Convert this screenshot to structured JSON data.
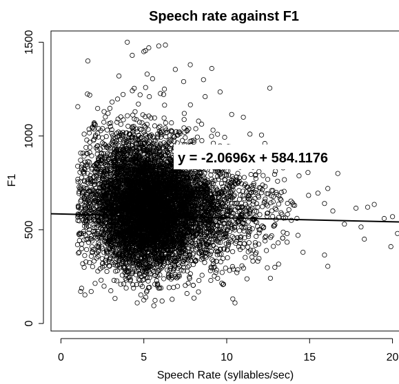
{
  "chart_data": {
    "type": "scatter",
    "title": "Speech rate against F1",
    "xlabel": "Speech Rate (syllables/sec)",
    "ylabel": "F1",
    "xlim": [
      -0.6,
      20.6
    ],
    "ylim": [
      -40,
      1560
    ],
    "xticks": [
      0,
      5,
      10,
      15,
      20
    ],
    "yticks": [
      0,
      500,
      1000,
      1500
    ],
    "grid": false,
    "legend": "none",
    "marker": "open-circle",
    "regression": {
      "slope": -2.0696,
      "intercept": 584.1176,
      "label": "y = -2.0696x + 584.1176"
    },
    "outliers": [
      [
        4.0,
        1500
      ],
      [
        4.3,
        1430
      ],
      [
        5.0,
        1450
      ],
      [
        5.1,
        1455
      ],
      [
        5.3,
        1470
      ],
      [
        5.9,
        1480
      ],
      [
        6.3,
        1485
      ],
      [
        7.8,
        1380
      ],
      [
        6.9,
        1355
      ],
      [
        9.1,
        1360
      ],
      [
        7.4,
        1290
      ],
      [
        8.6,
        1300
      ],
      [
        12.6,
        1255
      ],
      [
        5.2,
        1330
      ],
      [
        3.5,
        1320
      ],
      [
        9.6,
        1235
      ],
      [
        8.7,
        1210
      ],
      [
        10.3,
        1115
      ],
      [
        11.0,
        1100
      ],
      [
        11.4,
        1010
      ],
      [
        12.1,
        1005
      ],
      [
        12.3,
        960
      ],
      [
        13.4,
        830
      ],
      [
        14.9,
        805
      ],
      [
        16.7,
        800
      ],
      [
        16.1,
        720
      ],
      [
        15.5,
        695
      ],
      [
        15.9,
        640
      ],
      [
        16.4,
        600
      ],
      [
        17.8,
        615
      ],
      [
        18.5,
        620
      ],
      [
        18.9,
        635
      ],
      [
        17.1,
        530
      ],
      [
        18.1,
        515
      ],
      [
        18.3,
        450
      ],
      [
        19.5,
        560
      ],
      [
        20.0,
        570
      ],
      [
        20.3,
        480
      ],
      [
        19.9,
        410
      ],
      [
        14.6,
        380
      ],
      [
        15.9,
        365
      ],
      [
        16.1,
        305
      ],
      [
        12.9,
        300
      ],
      [
        11.6,
        390
      ],
      [
        10.4,
        290
      ],
      [
        9.7,
        215
      ],
      [
        10.5,
        110
      ],
      [
        7.6,
        160
      ],
      [
        6.1,
        120
      ],
      [
        5.0,
        125
      ],
      [
        4.6,
        110
      ],
      [
        5.6,
        95
      ],
      [
        3.2,
        230
      ],
      [
        1.4,
        300
      ],
      [
        1.1,
        380
      ],
      [
        1.0,
        420
      ],
      [
        1.2,
        480
      ],
      [
        1.5,
        610
      ],
      [
        1.3,
        700
      ],
      [
        1.4,
        800
      ],
      [
        1.6,
        905
      ],
      [
        1.4,
        1010
      ],
      [
        2.0,
        1060
      ],
      [
        2.6,
        1130
      ],
      [
        13.3,
        700
      ],
      [
        12.8,
        650
      ],
      [
        14.1,
        630
      ],
      [
        13.9,
        550
      ],
      [
        14.3,
        470
      ],
      [
        13.1,
        430
      ]
    ],
    "clusters": [
      {
        "cx": 5.5,
        "cy": 630,
        "sx": 1.9,
        "sy": 165,
        "n": 4200
      },
      {
        "cx": 5.0,
        "cy": 560,
        "sx": 1.4,
        "sy": 140,
        "n": 1800
      },
      {
        "cx": 8.8,
        "cy": 600,
        "sx": 2.3,
        "sy": 140,
        "n": 900
      },
      {
        "cx": 4.2,
        "cy": 830,
        "sx": 1.3,
        "sy": 160,
        "n": 500
      }
    ]
  }
}
